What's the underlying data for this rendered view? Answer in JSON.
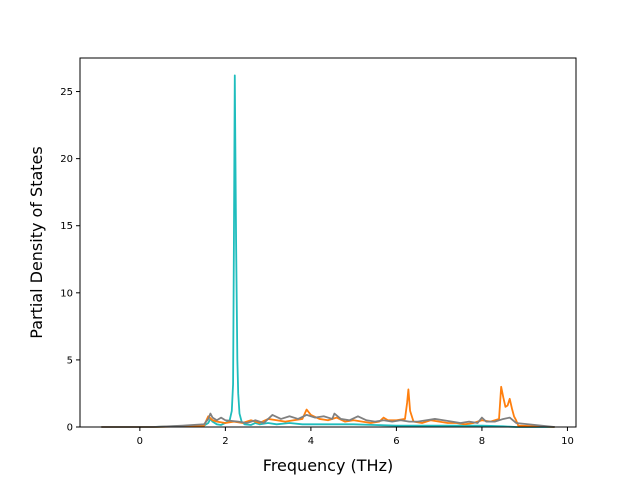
{
  "chart_data": {
    "type": "line",
    "title": "",
    "xlabel": "Frequency (THz)",
    "ylabel": "Partial Density of States",
    "xlim": [
      -1.4,
      10.2
    ],
    "ylim": [
      0,
      27.5
    ],
    "xticks": [
      0,
      2,
      4,
      6,
      8,
      10
    ],
    "yticks": [
      0,
      5,
      10,
      15,
      20,
      25
    ],
    "grid": false,
    "legend": "none",
    "series": [
      {
        "color": "#1fbdbd",
        "x": [
          -0.9,
          0.3,
          0.8,
          1.2,
          1.5,
          1.6,
          1.65,
          1.7,
          1.8,
          1.9,
          2.0,
          2.1,
          2.15,
          2.18,
          2.2,
          2.22,
          2.25,
          2.28,
          2.3,
          2.33,
          2.38,
          2.45,
          2.6,
          2.7,
          2.8,
          3.0,
          3.2,
          3.5,
          3.8,
          4.0,
          4.5,
          5.0,
          5.5,
          6.0,
          6.5,
          7.0,
          7.5,
          8.0,
          8.5,
          8.8,
          9.7
        ],
        "y": [
          0,
          0,
          0.05,
          0.08,
          0.1,
          0.3,
          0.6,
          0.4,
          0.2,
          0.15,
          0.3,
          0.5,
          1.2,
          3.2,
          14.0,
          26.2,
          14.0,
          5.0,
          2.5,
          1.0,
          0.4,
          0.2,
          0.15,
          0.3,
          0.2,
          0.3,
          0.2,
          0.3,
          0.2,
          0.2,
          0.2,
          0.2,
          0.15,
          0.1,
          0.1,
          0.1,
          0.1,
          0.1,
          0.05,
          0,
          0
        ]
      },
      {
        "color": "#ff7f0e",
        "x": [
          -0.9,
          0.3,
          1.0,
          1.5,
          1.6,
          1.7,
          1.8,
          2.0,
          2.2,
          2.4,
          2.6,
          2.8,
          3.0,
          3.2,
          3.4,
          3.6,
          3.8,
          3.9,
          4.0,
          4.2,
          4.4,
          4.6,
          4.8,
          5.0,
          5.2,
          5.4,
          5.6,
          5.7,
          5.8,
          6.0,
          6.2,
          6.25,
          6.28,
          6.32,
          6.4,
          6.6,
          6.8,
          7.0,
          7.2,
          7.4,
          7.6,
          7.8,
          8.0,
          8.2,
          8.4,
          8.45,
          8.5,
          8.55,
          8.6,
          8.65,
          8.7,
          8.75,
          8.8,
          8.85,
          9.7
        ],
        "y": [
          0,
          0,
          0.05,
          0.1,
          0.8,
          0.5,
          0.4,
          0.3,
          0.4,
          0.3,
          0.5,
          0.3,
          0.6,
          0.5,
          0.4,
          0.5,
          0.6,
          1.3,
          0.9,
          0.6,
          0.5,
          0.7,
          0.4,
          0.5,
          0.4,
          0.3,
          0.4,
          0.7,
          0.5,
          0.5,
          0.6,
          1.8,
          2.8,
          1.2,
          0.4,
          0.3,
          0.5,
          0.4,
          0.3,
          0.3,
          0.2,
          0.3,
          0.5,
          0.4,
          0.6,
          3.0,
          2.2,
          1.5,
          1.6,
          2.1,
          1.4,
          0.8,
          0.5,
          0.1,
          0
        ]
      },
      {
        "color": "#808080",
        "x": [
          -0.9,
          0.3,
          1.0,
          1.5,
          1.6,
          1.65,
          1.7,
          1.8,
          1.9,
          2.0,
          2.3,
          2.5,
          2.7,
          2.9,
          3.1,
          3.3,
          3.5,
          3.7,
          3.9,
          4.1,
          4.3,
          4.5,
          4.55,
          4.7,
          4.9,
          5.1,
          5.3,
          5.5,
          5.7,
          5.9,
          6.1,
          6.3,
          6.5,
          6.7,
          6.9,
          7.1,
          7.3,
          7.5,
          7.7,
          7.9,
          8.0,
          8.1,
          8.3,
          8.5,
          8.65,
          8.8,
          9.7
        ],
        "y": [
          0,
          0,
          0.1,
          0.2,
          0.6,
          1.0,
          0.7,
          0.5,
          0.7,
          0.5,
          0.4,
          0.3,
          0.5,
          0.3,
          0.9,
          0.6,
          0.8,
          0.6,
          0.9,
          0.7,
          0.8,
          0.6,
          1.0,
          0.6,
          0.5,
          0.8,
          0.5,
          0.4,
          0.5,
          0.4,
          0.5,
          0.4,
          0.4,
          0.5,
          0.6,
          0.5,
          0.4,
          0.3,
          0.4,
          0.3,
          0.7,
          0.4,
          0.4,
          0.6,
          0.7,
          0.3,
          0
        ]
      }
    ]
  }
}
